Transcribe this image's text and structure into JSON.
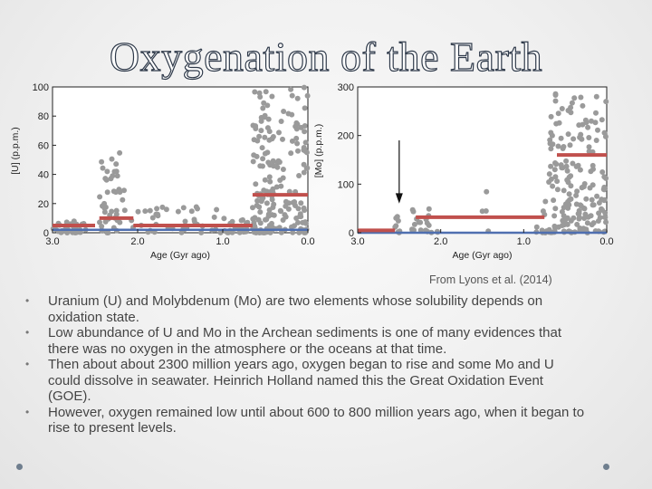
{
  "slide": {
    "title": "Oxygenation of the Earth",
    "credit": "From Lyons et al. (2014)",
    "bullets": [
      "Uranium (U) and Molybdenum (Mo) are two elements whose solubility depends on oxidation state.",
      "Low abundance of U and Mo in the Archean sediments is one of many evidences that there was no oxygen in the atmosphere or the oceans at that time.",
      "Then about about 2300 million years ago, oxygen began to rise and some Mo and U could dissolve in seawater. Heinrich Holland named this the Great Oxidation Event (GOE).",
      "However, oxygen remained low until about 600 to 800 million years ago, when it began to rise to present levels."
    ]
  },
  "colors": {
    "dots": "#9a9a9a",
    "mean_line": "#c0504d",
    "baseline": "#4f6fb0",
    "title_outline": "#2f3a4a"
  },
  "chart_data": [
    {
      "type": "scatter",
      "ylabel": "[U] (p.p.m.)",
      "xlabel": "Age (Gyr ago)",
      "xlim": [
        3.0,
        0.0
      ],
      "ylim": [
        0,
        100
      ],
      "xticks": [
        "3.0",
        "2.0",
        "1.0",
        "0.0"
      ],
      "yticks": [
        "0",
        "20",
        "40",
        "60",
        "80",
        "100"
      ],
      "clusters": [
        {
          "x": [
            3.0,
            2.6
          ],
          "y_max": 8,
          "n": 40
        },
        {
          "x": [
            2.45,
            2.15
          ],
          "y_max": 55,
          "n": 45
        },
        {
          "x": [
            2.1,
            1.0
          ],
          "y_max": 18,
          "n": 40
        },
        {
          "x": [
            1.0,
            0.65
          ],
          "y_max": 10,
          "n": 25
        },
        {
          "x": [
            0.65,
            0.4
          ],
          "y_max": 100,
          "n": 110
        },
        {
          "x": [
            0.4,
            0.0
          ],
          "y_max": 100,
          "n": 90
        }
      ],
      "means": [
        {
          "x": [
            3.0,
            2.5
          ],
          "y": 5
        },
        {
          "x": [
            2.45,
            2.05
          ],
          "y": 10
        },
        {
          "x": [
            2.05,
            0.65
          ],
          "y": 5
        },
        {
          "x": [
            0.65,
            0.0
          ],
          "y": 26
        }
      ],
      "baseline": {
        "x": [
          3.0,
          0.0
        ],
        "y": 2
      }
    },
    {
      "type": "scatter",
      "ylabel": "[Mo] (p.p.m.)",
      "xlabel": "Age (Gyr ago)",
      "xlim": [
        3.0,
        0.0
      ],
      "ylim": [
        0,
        300
      ],
      "xticks": [
        "3.0",
        "2.0",
        "1.0",
        "0.0"
      ],
      "yticks": [
        "0",
        "100",
        "200",
        "300"
      ],
      "arrow_at": 2.5,
      "clusters": [
        {
          "x": [
            2.55,
            2.45
          ],
          "y_max": 45,
          "n": 8
        },
        {
          "x": [
            2.35,
            2.0
          ],
          "y_max": 55,
          "n": 20
        },
        {
          "x": [
            1.5,
            1.4
          ],
          "y_max": 115,
          "n": 4
        },
        {
          "x": [
            0.85,
            0.7
          ],
          "y_max": 80,
          "n": 10
        },
        {
          "x": [
            0.7,
            0.3
          ],
          "y_max": 300,
          "n": 110
        },
        {
          "x": [
            0.3,
            0.0
          ],
          "y_max": 300,
          "n": 70
        }
      ],
      "means": [
        {
          "x": [
            3.0,
            2.55
          ],
          "y": 5
        },
        {
          "x": [
            2.3,
            0.75
          ],
          "y": 32
        },
        {
          "x": [
            0.6,
            0.0
          ],
          "y": 160
        }
      ],
      "baseline": {
        "x": [
          3.0,
          0.0
        ],
        "y": 0
      }
    }
  ]
}
